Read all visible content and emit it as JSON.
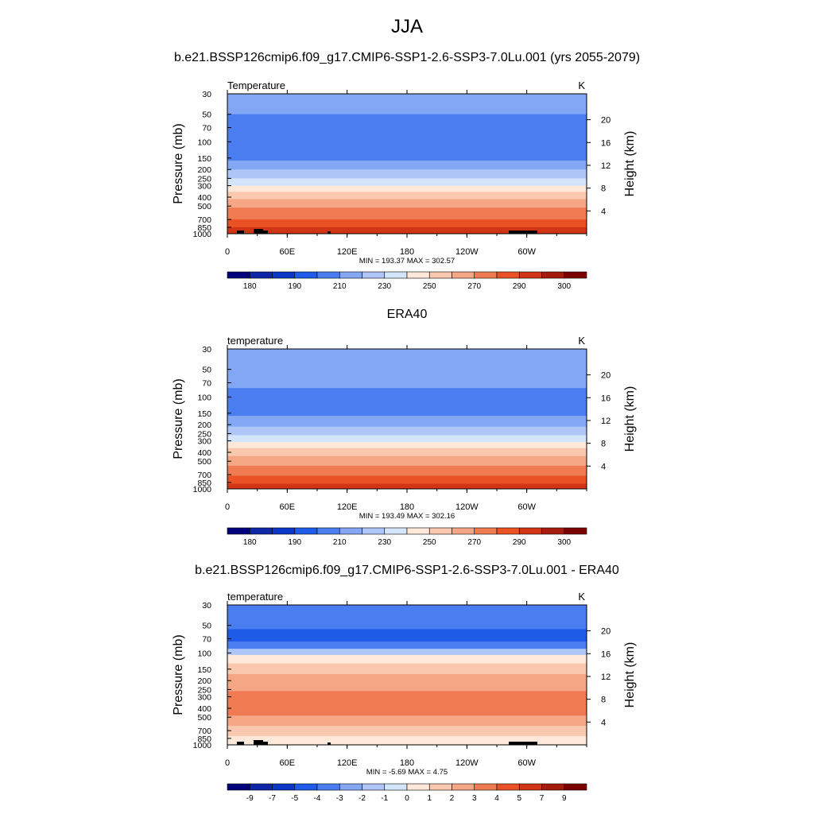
{
  "figure": {
    "title": "JJA",
    "panel_titles": [
      "b.e21.BSSP126cmip6.f09_g17.CMIP6-SSP1-2.6-SSP3-7.0Lu.001 (yrs 2055-2079)",
      "ERA40",
      "b.e21.BSSP126cmip6.f09_g17.CMIP6-SSP1-2.6-SSP3-7.0Lu.001 - ERA40"
    ]
  },
  "chart_data": [
    {
      "type": "heatmap",
      "variable_label": "Temperature",
      "units": "K",
      "xlabel": "",
      "ylabel": "Pressure (mb)",
      "ylabel_right": "Height (km)",
      "x_ticks": [
        "0",
        "60E",
        "120E",
        "180",
        "120W",
        "60W"
      ],
      "y_ticks": [
        "30",
        "50",
        "70",
        "100",
        "150",
        "200",
        "250",
        "300",
        "400",
        "500",
        "700",
        "850",
        "1000"
      ],
      "y_right_ticks": [
        "20",
        "16",
        "12",
        "8",
        "4"
      ],
      "stats": "MIN = 193.37  MAX = 302.57",
      "colorbar_labels": [
        "180",
        "190",
        "210",
        "230",
        "250",
        "270",
        "290",
        "300"
      ],
      "approx_band_values": [
        {
          "p_top": 30,
          "p_bottom": 50,
          "value": 214
        },
        {
          "p_top": 50,
          "p_bottom": 110,
          "value": 200
        },
        {
          "p_top": 110,
          "p_bottom": 160,
          "value": 208
        },
        {
          "p_top": 160,
          "p_bottom": 200,
          "value": 214
        },
        {
          "p_top": 200,
          "p_bottom": 250,
          "value": 222
        },
        {
          "p_top": 250,
          "p_bottom": 300,
          "value": 235
        },
        {
          "p_top": 300,
          "p_bottom": 350,
          "value": 246
        },
        {
          "p_top": 350,
          "p_bottom": 420,
          "value": 254
        },
        {
          "p_top": 420,
          "p_bottom": 520,
          "value": 262
        },
        {
          "p_top": 520,
          "p_bottom": 700,
          "value": 272
        },
        {
          "p_top": 700,
          "p_bottom": 850,
          "value": 282
        },
        {
          "p_top": 850,
          "p_bottom": 1000,
          "value": 290
        }
      ],
      "topography": true
    },
    {
      "type": "heatmap",
      "variable_label": "temperature",
      "units": "K",
      "xlabel": "",
      "ylabel": "Pressure (mb)",
      "ylabel_right": "Height (km)",
      "x_ticks": [
        "0",
        "60E",
        "120E",
        "180",
        "120W",
        "60W"
      ],
      "y_ticks": [
        "30",
        "50",
        "70",
        "100",
        "150",
        "200",
        "250",
        "300",
        "400",
        "500",
        "700",
        "850",
        "1000"
      ],
      "y_right_ticks": [
        "20",
        "16",
        "12",
        "8",
        "4"
      ],
      "stats": "MIN = 193.49  MAX = 302.16",
      "colorbar_labels": [
        "180",
        "190",
        "210",
        "230",
        "250",
        "270",
        "290",
        "300"
      ],
      "approx_band_values": [
        {
          "p_top": 30,
          "p_bottom": 55,
          "value": 214
        },
        {
          "p_top": 55,
          "p_bottom": 80,
          "value": 212
        },
        {
          "p_top": 80,
          "p_bottom": 120,
          "value": 202
        },
        {
          "p_top": 120,
          "p_bottom": 160,
          "value": 208
        },
        {
          "p_top": 160,
          "p_bottom": 210,
          "value": 214
        },
        {
          "p_top": 210,
          "p_bottom": 260,
          "value": 222
        },
        {
          "p_top": 260,
          "p_bottom": 310,
          "value": 235
        },
        {
          "p_top": 310,
          "p_bottom": 360,
          "value": 246
        },
        {
          "p_top": 360,
          "p_bottom": 440,
          "value": 254
        },
        {
          "p_top": 440,
          "p_bottom": 560,
          "value": 262
        },
        {
          "p_top": 560,
          "p_bottom": 720,
          "value": 272
        },
        {
          "p_top": 720,
          "p_bottom": 880,
          "value": 282
        },
        {
          "p_top": 880,
          "p_bottom": 1000,
          "value": 290
        }
      ],
      "topography": false
    },
    {
      "type": "heatmap",
      "variable_label": "temperature",
      "units": "K",
      "xlabel": "",
      "ylabel": "Pressure (mb)",
      "ylabel_right": "Height (km)",
      "x_ticks": [
        "0",
        "60E",
        "120E",
        "180",
        "120W",
        "60W"
      ],
      "y_ticks": [
        "30",
        "50",
        "70",
        "100",
        "150",
        "200",
        "250",
        "300",
        "400",
        "500",
        "700",
        "850",
        "1000"
      ],
      "y_right_ticks": [
        "20",
        "16",
        "12",
        "8",
        "4"
      ],
      "stats": "MIN =  -5.69  MAX =   4.75",
      "colorbar_labels": [
        "-9",
        "-7",
        "-5",
        "-4",
        "-3",
        "-2",
        "-1",
        "0",
        "1",
        "2",
        "3",
        "4",
        "5",
        "7",
        "9"
      ],
      "approx_band_values": [
        {
          "p_top": 30,
          "p_bottom": 55,
          "value": -3.5
        },
        {
          "p_top": 55,
          "p_bottom": 75,
          "value": -4.5
        },
        {
          "p_top": 75,
          "p_bottom": 90,
          "value": -3.5
        },
        {
          "p_top": 90,
          "p_bottom": 105,
          "value": -1.5
        },
        {
          "p_top": 105,
          "p_bottom": 130,
          "value": 0.5
        },
        {
          "p_top": 130,
          "p_bottom": 170,
          "value": 1.5
        },
        {
          "p_top": 170,
          "p_bottom": 260,
          "value": 2.5
        },
        {
          "p_top": 260,
          "p_bottom": 480,
          "value": 3.5
        },
        {
          "p_top": 480,
          "p_bottom": 620,
          "value": 2.5
        },
        {
          "p_top": 620,
          "p_bottom": 800,
          "value": 1.5
        },
        {
          "p_top": 800,
          "p_bottom": 1000,
          "value": 0.5
        }
      ],
      "topography": true
    }
  ],
  "colors": {
    "temperature_scale": [
      "#00007a",
      "#0d27a6",
      "#0b37c6",
      "#1e5be6",
      "#4a7ef0",
      "#83a6f5",
      "#aec6f7",
      "#d3e5fb",
      "#fde8d9",
      "#f9c8ae",
      "#f5a684",
      "#f07a52",
      "#ea5225",
      "#d23516",
      "#a51c0c",
      "#7a0000"
    ],
    "topography": "#000000"
  }
}
